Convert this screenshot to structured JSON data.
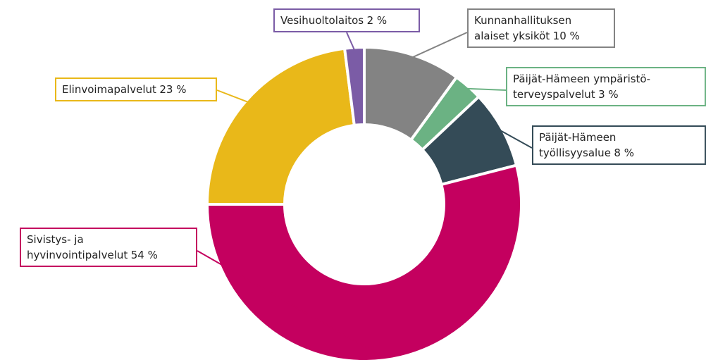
{
  "chart_data": {
    "type": "donut",
    "categories": [
      "Kunnanhallituksen alaiset yksiköt",
      "Päijät-Hämeen ympäristö­terveyspalvelut",
      "Päijät-Hämeen työllisyysalue",
      "Sivistys- ja hyvinvointipalvelut",
      "Elinvoimapalvelut",
      "Vesihuoltolaitos"
    ],
    "values": [
      10,
      3,
      8,
      54,
      23,
      2
    ],
    "value_labels": [
      "10 %",
      "3 %",
      "8 %",
      "54 %",
      "23 %",
      "2 %"
    ],
    "colors": [
      "#838383",
      "#6bb283",
      "#344b57",
      "#c4005f",
      "#e9b819",
      "#7b5ca6"
    ]
  }
}
